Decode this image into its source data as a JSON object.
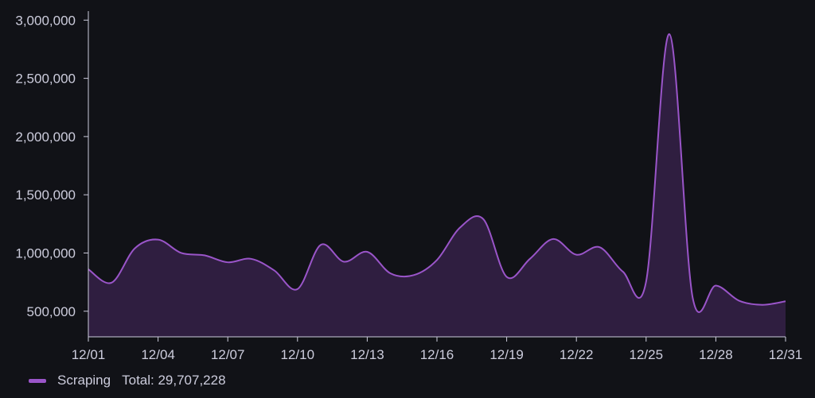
{
  "colors": {
    "background": "#111217",
    "series_line": "#9a55c9",
    "series_fill": "#2f1e40",
    "axis_text": "#ccccdc",
    "axis_line": "#ccccdc"
  },
  "legend": {
    "series_name": "Scraping",
    "total_label": "Total: 29,707,228"
  },
  "chart_data": {
    "type": "area",
    "xlabel": "",
    "ylabel": "",
    "ylim": [
      280000,
      3050000
    ],
    "grid": false,
    "legend_position": "bottom-left",
    "x_ticks": [
      "12/01",
      "12/04",
      "12/07",
      "12/10",
      "12/13",
      "12/16",
      "12/19",
      "12/22",
      "12/25",
      "12/28",
      "12/31"
    ],
    "y_ticks": [
      {
        "value": 500000,
        "label": "500,000"
      },
      {
        "value": 1000000,
        "label": "1,000,000"
      },
      {
        "value": 1500000,
        "label": "1,500,000"
      },
      {
        "value": 2000000,
        "label": "2,000,000"
      },
      {
        "value": 2500000,
        "label": "2,500,000"
      },
      {
        "value": 3000000,
        "label": "3,000,000"
      }
    ],
    "series": [
      {
        "name": "Scraping",
        "x": [
          "12/01",
          "12/02",
          "12/03",
          "12/04",
          "12/05",
          "12/06",
          "12/07",
          "12/08",
          "12/09",
          "12/10",
          "12/11",
          "12/12",
          "12/13",
          "12/14",
          "12/15",
          "12/16",
          "12/17",
          "12/18",
          "12/19",
          "12/20",
          "12/21",
          "12/22",
          "12/23",
          "12/24",
          "12/25",
          "12/26",
          "12/27",
          "12/28",
          "12/29",
          "12/30",
          "12/31"
        ],
        "values": [
          860000,
          745000,
          1040000,
          1115000,
          1000000,
          980000,
          920000,
          950000,
          850000,
          690000,
          1070000,
          925000,
          1010000,
          825000,
          810000,
          940000,
          1220000,
          1290000,
          795000,
          950000,
          1120000,
          985000,
          1050000,
          840000,
          755000,
          2880000,
          620000,
          720000,
          590000,
          555000,
          585000
        ]
      }
    ]
  }
}
